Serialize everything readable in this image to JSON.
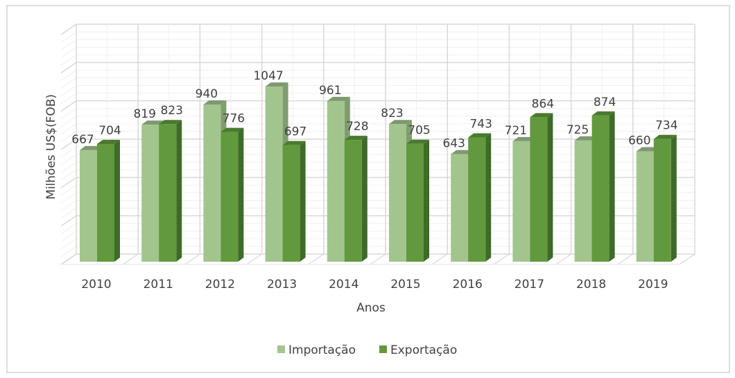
{
  "chart_data": {
    "type": "bar",
    "style": "3d-clustered-column",
    "title": "",
    "xlabel": "Anos",
    "ylabel": "Milhões US$(FOB)",
    "categories": [
      "2010",
      "2011",
      "2012",
      "2013",
      "2014",
      "2015",
      "2016",
      "2017",
      "2018",
      "2019"
    ],
    "series": [
      {
        "name": "Importação",
        "color": "#A2C58D",
        "values": [
          667,
          819,
          940,
          1047,
          961,
          823,
          643,
          721,
          725,
          660
        ]
      },
      {
        "name": "Exportação",
        "color": "#62993E",
        "values": [
          704,
          823,
          776,
          697,
          728,
          705,
          743,
          864,
          874,
          734
        ]
      }
    ],
    "ylim": [
      0,
      1200
    ],
    "y_major_step": 200,
    "y_tick_labels_shown": false,
    "grid": true,
    "data_labels": true,
    "legend": "bottom"
  }
}
